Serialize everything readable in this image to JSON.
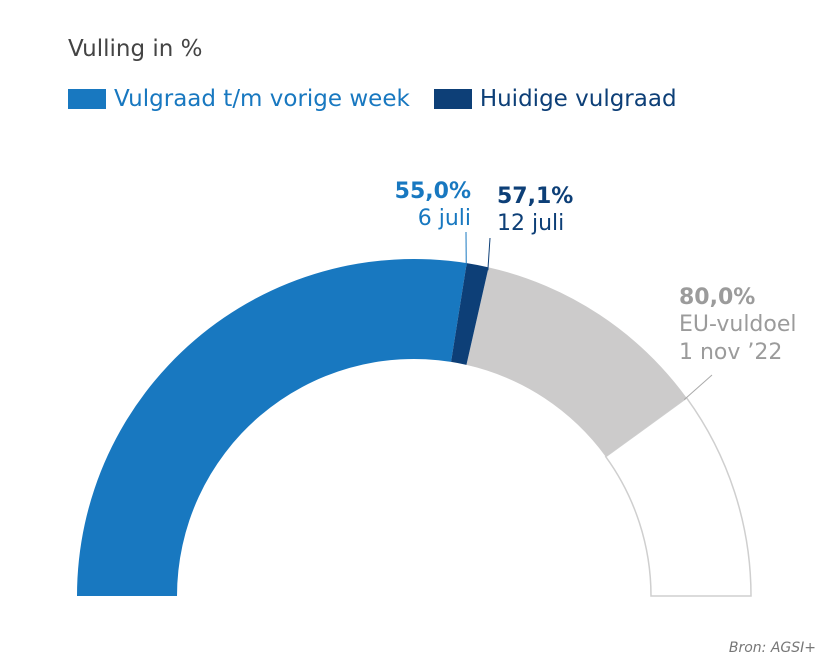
{
  "subtitle": "Vulling in %",
  "legend": [
    {
      "label": "Vulgraad t/m vorige week",
      "color": "#1878c0"
    },
    {
      "label": "Huidige vulgraad",
      "color": "#0d3f77"
    }
  ],
  "source": "Bron: AGSI+",
  "colors": {
    "previous": "#1878c0",
    "current": "#0d3f77",
    "target": "#cccbcb",
    "remainder": "#ffffff",
    "outline": "#cfcfcf"
  },
  "chart_data": {
    "type": "gauge",
    "ylim": [
      0,
      100
    ],
    "unit": "%",
    "segments": [
      {
        "name": "Vulgraad t/m vorige week",
        "value": 55.0
      },
      {
        "name": "Huidige vulgraad",
        "value": 57.1
      },
      {
        "name": "EU-vuldoel",
        "value": 80.0
      }
    ],
    "annotations": [
      {
        "value_label": "55,0%",
        "date_label": "6 juli"
      },
      {
        "value_label": "57,1%",
        "date_label": "12 juli"
      },
      {
        "value_label": "80,0%",
        "label": "EU-vuldoel",
        "date_label": "1 nov ’22"
      }
    ]
  }
}
